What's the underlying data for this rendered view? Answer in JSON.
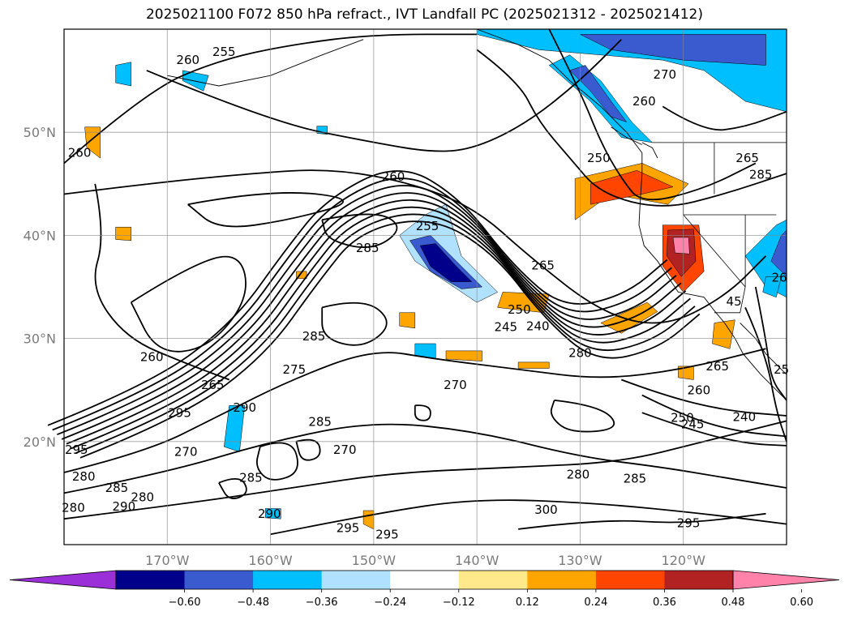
{
  "title": "2025021100 F072 850 hPa refract., IVT Landfall PC (2025021312 - 2025021412)",
  "chart_data": {
    "type": "contour_map",
    "title": "2025021100 F072 850 hPa refract., IVT Landfall PC (2025021312 - 2025021412)",
    "projection": "lat-lon",
    "lon_range": [
      -180,
      -110
    ],
    "lat_range": [
      10,
      60
    ],
    "lon_ticks": [
      {
        "value": -170,
        "label": "170°W"
      },
      {
        "value": -160,
        "label": "160°W"
      },
      {
        "value": -150,
        "label": "150°W"
      },
      {
        "value": -140,
        "label": "140°W"
      },
      {
        "value": -130,
        "label": "130°W"
      },
      {
        "value": -120,
        "label": "120°W"
      }
    ],
    "lat_ticks": [
      {
        "value": 20,
        "label": "20°N"
      },
      {
        "value": 30,
        "label": "30°N"
      },
      {
        "value": 40,
        "label": "40°N"
      },
      {
        "value": 50,
        "label": "50°N"
      }
    ],
    "grid": true,
    "colorbar": {
      "orientation": "horizontal",
      "extend": "both",
      "levels": [
        -0.6,
        -0.48,
        -0.36,
        -0.24,
        -0.12,
        0.12,
        0.24,
        0.36,
        0.48,
        0.6
      ],
      "tick_labels": [
        "−0.60",
        "−0.48",
        "−0.36",
        "−0.24",
        "−0.12",
        "0.12",
        "0.24",
        "0.36",
        "0.48",
        "0.60"
      ],
      "colors": [
        "#9b30d9",
        "#00008b",
        "#3a5bd0",
        "#00bfff",
        "#b0e2ff",
        "#ffffff",
        "#ffe98a",
        "#ffa500",
        "#ff4500",
        "#b22222",
        "#ff82ab"
      ]
    },
    "contour_labels": [
      {
        "lon": -168,
        "lat": 56.6,
        "text": "260"
      },
      {
        "lon": -164.5,
        "lat": 57.4,
        "text": "255"
      },
      {
        "lon": -121.8,
        "lat": 55.2,
        "text": "270"
      },
      {
        "lon": -123.8,
        "lat": 52.6,
        "text": "260"
      },
      {
        "lon": -113.8,
        "lat": 47.1,
        "text": "265"
      },
      {
        "lon": -112.5,
        "lat": 45.5,
        "text": "285"
      },
      {
        "lon": -128.2,
        "lat": 47.1,
        "text": "250"
      },
      {
        "lon": -178.5,
        "lat": 47.6,
        "text": "260"
      },
      {
        "lon": -148.1,
        "lat": 45.3,
        "text": "260"
      },
      {
        "lon": -150.6,
        "lat": 38.4,
        "text": "285"
      },
      {
        "lon": -144.8,
        "lat": 40.5,
        "text": "255"
      },
      {
        "lon": -133.6,
        "lat": 36.7,
        "text": "265"
      },
      {
        "lon": -135.9,
        "lat": 32.4,
        "text": "250"
      },
      {
        "lon": -134.1,
        "lat": 30.8,
        "text": "240"
      },
      {
        "lon": -137.2,
        "lat": 30.7,
        "text": "245"
      },
      {
        "lon": -130,
        "lat": 28.2,
        "text": "280"
      },
      {
        "lon": -155.8,
        "lat": 29.8,
        "text": "285"
      },
      {
        "lon": -171.5,
        "lat": 27.8,
        "text": "260"
      },
      {
        "lon": -165.6,
        "lat": 25.1,
        "text": "265"
      },
      {
        "lon": -168.8,
        "lat": 22.4,
        "text": "295"
      },
      {
        "lon": -157.7,
        "lat": 26.6,
        "text": "275"
      },
      {
        "lon": -162.5,
        "lat": 22.9,
        "text": "290"
      },
      {
        "lon": -155.2,
        "lat": 21.5,
        "text": "285"
      },
      {
        "lon": -142.1,
        "lat": 25.1,
        "text": "270"
      },
      {
        "lon": -152.8,
        "lat": 18.8,
        "text": "270"
      },
      {
        "lon": -178.8,
        "lat": 18.8,
        "text": "295"
      },
      {
        "lon": -178.1,
        "lat": 16.2,
        "text": "280"
      },
      {
        "lon": -174.9,
        "lat": 15.1,
        "text": "285"
      },
      {
        "lon": -172.4,
        "lat": 14.2,
        "text": "280"
      },
      {
        "lon": -174.2,
        "lat": 13.3,
        "text": "290"
      },
      {
        "lon": -179.1,
        "lat": 13.2,
        "text": "280"
      },
      {
        "lon": -161.9,
        "lat": 16.1,
        "text": "285"
      },
      {
        "lon": -168.2,
        "lat": 18.6,
        "text": "270"
      },
      {
        "lon": -160.1,
        "lat": 12.6,
        "text": "290"
      },
      {
        "lon": -152.5,
        "lat": 11.2,
        "text": "295"
      },
      {
        "lon": -148.7,
        "lat": 10.6,
        "text": "295"
      },
      {
        "lon": -130.2,
        "lat": 16.4,
        "text": "280"
      },
      {
        "lon": -124.7,
        "lat": 16.0,
        "text": "285"
      },
      {
        "lon": -133.3,
        "lat": 13.0,
        "text": "300"
      },
      {
        "lon": -119.5,
        "lat": 11.7,
        "text": "295"
      },
      {
        "lon": -118.5,
        "lat": 24.6,
        "text": "260"
      },
      {
        "lon": -116.7,
        "lat": 26.9,
        "text": "265"
      },
      {
        "lon": -120.1,
        "lat": 21.9,
        "text": "250"
      },
      {
        "lon": -119.1,
        "lat": 21.3,
        "text": "245"
      },
      {
        "lon": -114.1,
        "lat": 22.0,
        "text": "240"
      },
      {
        "lon": -110.7,
        "lat": 35.5,
        "text": "26"
      },
      {
        "lon": -115.1,
        "lat": 33.2,
        "text": "45"
      },
      {
        "lon": -110.5,
        "lat": 26.6,
        "text": "25"
      }
    ]
  }
}
